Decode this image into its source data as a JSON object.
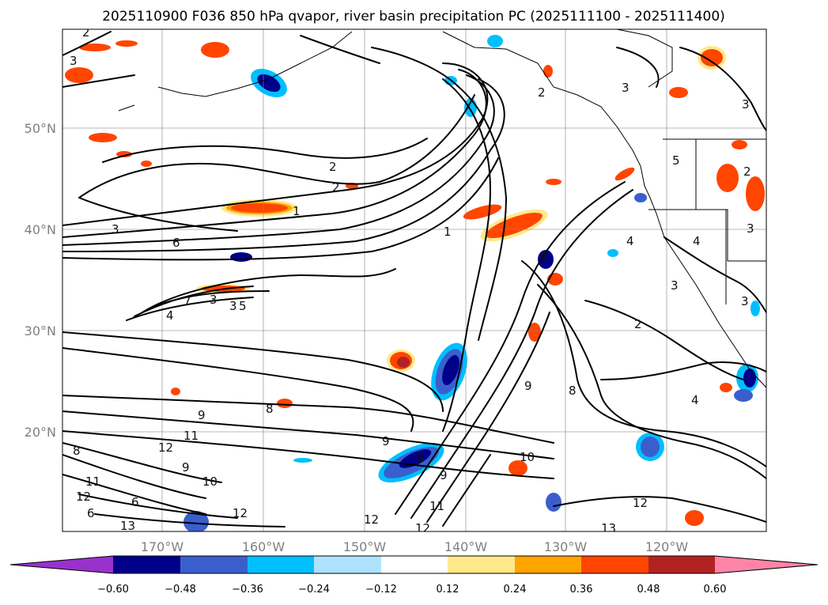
{
  "title": "2025110900 F036 850 hPa qvapor, river basin precipitation PC (2025111100 - 2025111400)",
  "lat_labels": [
    "50°N",
    "40°N",
    "30°N",
    "20°N"
  ],
  "lon_labels": [
    "170°W",
    "160°W",
    "150°W",
    "140°W",
    "130°W",
    "120°W"
  ],
  "colorbar": {
    "ticks": [
      "−0.60",
      "−0.48",
      "−0.36",
      "−0.24",
      "−0.12",
      "0.12",
      "0.24",
      "0.36",
      "0.48",
      "0.60"
    ],
    "colors": [
      "#9932cc",
      "#00008b",
      "#3a5fcd",
      "#00bfff",
      "#aee3ff",
      "#ffffff",
      "#ffe98a",
      "#ffa500",
      "#ff4500",
      "#b22222",
      "#ff85a8"
    ]
  },
  "contour_labels": [
    "2",
    "3",
    "2",
    "2",
    "3",
    "3",
    "3",
    "6",
    "3",
    "1",
    "8",
    "1",
    "2",
    "5",
    "3",
    "7",
    "4",
    "5",
    "3",
    "2",
    "3",
    "4",
    "9",
    "8",
    "9",
    "11",
    "12",
    "9",
    "10",
    "11",
    "12",
    "6",
    "8",
    "12",
    "12",
    "12",
    "11",
    "9",
    "8",
    "6",
    "10",
    "13",
    "4",
    "12",
    "13",
    "9",
    "3",
    "4",
    "2",
    "8"
  ]
}
